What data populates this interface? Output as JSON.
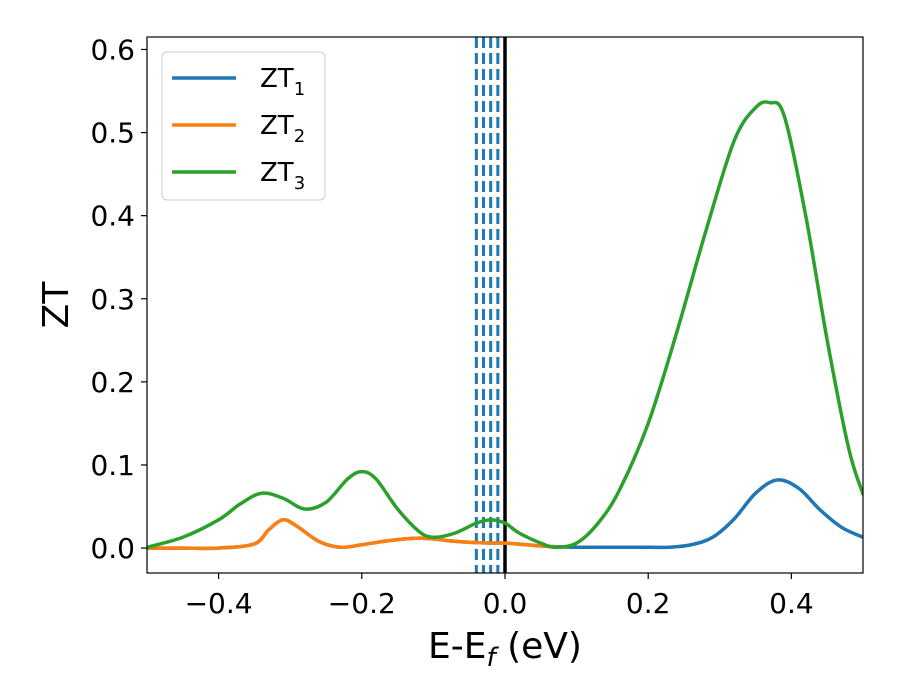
{
  "chart_data": {
    "type": "line",
    "xlabel": "E-E",
    "xlabel_sub": "f",
    "xlabel_unit": " (eV)",
    "ylabel": "ZT",
    "xlim": [
      -0.5,
      0.5
    ],
    "ylim": [
      -0.03,
      0.615
    ],
    "x_ticks": [
      -0.4,
      -0.2,
      0.0,
      0.2,
      0.4
    ],
    "x_tick_labels": [
      "−0.4",
      "−0.2",
      "0.0",
      "0.2",
      "0.4"
    ],
    "y_ticks": [
      0.0,
      0.1,
      0.2,
      0.3,
      0.4,
      0.5,
      0.6
    ],
    "y_tick_labels": [
      "0.0",
      "0.1",
      "0.2",
      "0.3",
      "0.4",
      "0.5",
      "0.6"
    ],
    "grid": false,
    "legend": "top-left",
    "series": [
      {
        "name_base": "ZT",
        "name_sub": "1",
        "color": "#1f77b4",
        "x": [
          -0.5,
          -0.45,
          -0.4,
          -0.35,
          -0.33,
          -0.31,
          -0.29,
          -0.26,
          -0.23,
          -0.2,
          -0.17,
          -0.14,
          -0.12,
          -0.1,
          -0.08,
          -0.05,
          -0.02,
          0.0,
          0.03,
          0.06,
          0.1,
          0.15,
          0.2,
          0.23,
          0.26,
          0.29,
          0.32,
          0.35,
          0.38,
          0.41,
          0.44,
          0.47,
          0.5
        ],
        "y": [
          0.0,
          0.0,
          0.0,
          0.005,
          0.022,
          0.034,
          0.026,
          0.008,
          0.001,
          0.004,
          0.008,
          0.011,
          0.012,
          0.011,
          0.009,
          0.007,
          0.006,
          0.006,
          0.004,
          0.002,
          0.001,
          0.001,
          0.001,
          0.001,
          0.004,
          0.013,
          0.035,
          0.066,
          0.082,
          0.072,
          0.046,
          0.025,
          0.013
        ]
      },
      {
        "name_base": "ZT",
        "name_sub": "2",
        "color": "#ff7f0e",
        "x": [
          -0.5,
          -0.45,
          -0.4,
          -0.35,
          -0.33,
          -0.31,
          -0.29,
          -0.26,
          -0.23,
          -0.2,
          -0.17,
          -0.14,
          -0.12,
          -0.1,
          -0.08,
          -0.05,
          -0.02,
          0.0,
          0.03,
          0.06,
          0.08
        ],
        "y": [
          0.0,
          0.0,
          0.0,
          0.005,
          0.022,
          0.034,
          0.026,
          0.008,
          0.001,
          0.004,
          0.008,
          0.011,
          0.012,
          0.011,
          0.009,
          0.007,
          0.006,
          0.006,
          0.004,
          0.002,
          0.001
        ]
      },
      {
        "name_base": "ZT",
        "name_sub": "3",
        "color": "#2ca02c",
        "x": [
          -0.5,
          -0.45,
          -0.4,
          -0.37,
          -0.34,
          -0.31,
          -0.28,
          -0.25,
          -0.22,
          -0.2,
          -0.18,
          -0.15,
          -0.12,
          -0.1,
          -0.07,
          -0.04,
          -0.02,
          0.0,
          0.02,
          0.05,
          0.07,
          0.1,
          0.13,
          0.16,
          0.2,
          0.24,
          0.28,
          0.32,
          0.35,
          0.37,
          0.39,
          0.42,
          0.45,
          0.48,
          0.5
        ],
        "y": [
          0.001,
          0.013,
          0.034,
          0.053,
          0.066,
          0.06,
          0.047,
          0.055,
          0.083,
          0.092,
          0.083,
          0.047,
          0.02,
          0.013,
          0.018,
          0.03,
          0.034,
          0.03,
          0.018,
          0.006,
          0.001,
          0.006,
          0.03,
          0.07,
          0.15,
          0.26,
          0.38,
          0.49,
          0.53,
          0.536,
          0.52,
          0.4,
          0.25,
          0.12,
          0.065
        ]
      }
    ],
    "vlines": [
      {
        "x": -0.04,
        "style": "dashed",
        "color": "#1f77b4"
      },
      {
        "x": -0.03,
        "style": "dashed",
        "color": "#1f77b4"
      },
      {
        "x": -0.02,
        "style": "dashed",
        "color": "#1f77b4"
      },
      {
        "x": -0.01,
        "style": "dashed",
        "color": "#1f77b4"
      },
      {
        "x": 0.0,
        "style": "solid",
        "color": "#000000"
      }
    ]
  }
}
